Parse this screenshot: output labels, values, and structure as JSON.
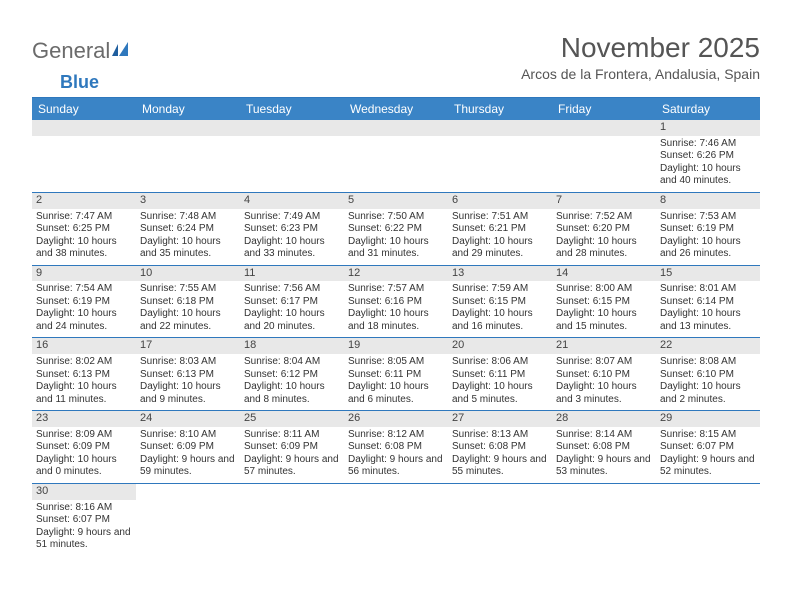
{
  "logo": {
    "text1": "General",
    "text2": "Blue"
  },
  "title": "November 2025",
  "location": "Arcos de la Frontera, Andalusia, Spain",
  "colors": {
    "header_bg": "#3a84c6",
    "header_text": "#ffffff",
    "rule": "#2f78bd",
    "daynum_bg": "#e8e8e8",
    "body_text": "#333333",
    "logo_blue": "#2f78bd",
    "logo_gray": "#6b6b6b",
    "empty_bg": "#efefef"
  },
  "days_of_week": [
    "Sunday",
    "Monday",
    "Tuesday",
    "Wednesday",
    "Thursday",
    "Friday",
    "Saturday"
  ],
  "first_weekday_index": 6,
  "num_days": 30,
  "day_data": {
    "1": {
      "sunrise": "7:46 AM",
      "sunset": "6:26 PM",
      "daylight": "10 hours and 40 minutes."
    },
    "2": {
      "sunrise": "7:47 AM",
      "sunset": "6:25 PM",
      "daylight": "10 hours and 38 minutes."
    },
    "3": {
      "sunrise": "7:48 AM",
      "sunset": "6:24 PM",
      "daylight": "10 hours and 35 minutes."
    },
    "4": {
      "sunrise": "7:49 AM",
      "sunset": "6:23 PM",
      "daylight": "10 hours and 33 minutes."
    },
    "5": {
      "sunrise": "7:50 AM",
      "sunset": "6:22 PM",
      "daylight": "10 hours and 31 minutes."
    },
    "6": {
      "sunrise": "7:51 AM",
      "sunset": "6:21 PM",
      "daylight": "10 hours and 29 minutes."
    },
    "7": {
      "sunrise": "7:52 AM",
      "sunset": "6:20 PM",
      "daylight": "10 hours and 28 minutes."
    },
    "8": {
      "sunrise": "7:53 AM",
      "sunset": "6:19 PM",
      "daylight": "10 hours and 26 minutes."
    },
    "9": {
      "sunrise": "7:54 AM",
      "sunset": "6:19 PM",
      "daylight": "10 hours and 24 minutes."
    },
    "10": {
      "sunrise": "7:55 AM",
      "sunset": "6:18 PM",
      "daylight": "10 hours and 22 minutes."
    },
    "11": {
      "sunrise": "7:56 AM",
      "sunset": "6:17 PM",
      "daylight": "10 hours and 20 minutes."
    },
    "12": {
      "sunrise": "7:57 AM",
      "sunset": "6:16 PM",
      "daylight": "10 hours and 18 minutes."
    },
    "13": {
      "sunrise": "7:59 AM",
      "sunset": "6:15 PM",
      "daylight": "10 hours and 16 minutes."
    },
    "14": {
      "sunrise": "8:00 AM",
      "sunset": "6:15 PM",
      "daylight": "10 hours and 15 minutes."
    },
    "15": {
      "sunrise": "8:01 AM",
      "sunset": "6:14 PM",
      "daylight": "10 hours and 13 minutes."
    },
    "16": {
      "sunrise": "8:02 AM",
      "sunset": "6:13 PM",
      "daylight": "10 hours and 11 minutes."
    },
    "17": {
      "sunrise": "8:03 AM",
      "sunset": "6:13 PM",
      "daylight": "10 hours and 9 minutes."
    },
    "18": {
      "sunrise": "8:04 AM",
      "sunset": "6:12 PM",
      "daylight": "10 hours and 8 minutes."
    },
    "19": {
      "sunrise": "8:05 AM",
      "sunset": "6:11 PM",
      "daylight": "10 hours and 6 minutes."
    },
    "20": {
      "sunrise": "8:06 AM",
      "sunset": "6:11 PM",
      "daylight": "10 hours and 5 minutes."
    },
    "21": {
      "sunrise": "8:07 AM",
      "sunset": "6:10 PM",
      "daylight": "10 hours and 3 minutes."
    },
    "22": {
      "sunrise": "8:08 AM",
      "sunset": "6:10 PM",
      "daylight": "10 hours and 2 minutes."
    },
    "23": {
      "sunrise": "8:09 AM",
      "sunset": "6:09 PM",
      "daylight": "10 hours and 0 minutes."
    },
    "24": {
      "sunrise": "8:10 AM",
      "sunset": "6:09 PM",
      "daylight": "9 hours and 59 minutes."
    },
    "25": {
      "sunrise": "8:11 AM",
      "sunset": "6:09 PM",
      "daylight": "9 hours and 57 minutes."
    },
    "26": {
      "sunrise": "8:12 AM",
      "sunset": "6:08 PM",
      "daylight": "9 hours and 56 minutes."
    },
    "27": {
      "sunrise": "8:13 AM",
      "sunset": "6:08 PM",
      "daylight": "9 hours and 55 minutes."
    },
    "28": {
      "sunrise": "8:14 AM",
      "sunset": "6:08 PM",
      "daylight": "9 hours and 53 minutes."
    },
    "29": {
      "sunrise": "8:15 AM",
      "sunset": "6:07 PM",
      "daylight": "9 hours and 52 minutes."
    },
    "30": {
      "sunrise": "8:16 AM",
      "sunset": "6:07 PM",
      "daylight": "9 hours and 51 minutes."
    }
  },
  "labels": {
    "sunrise": "Sunrise:",
    "sunset": "Sunset:",
    "daylight": "Daylight:"
  }
}
